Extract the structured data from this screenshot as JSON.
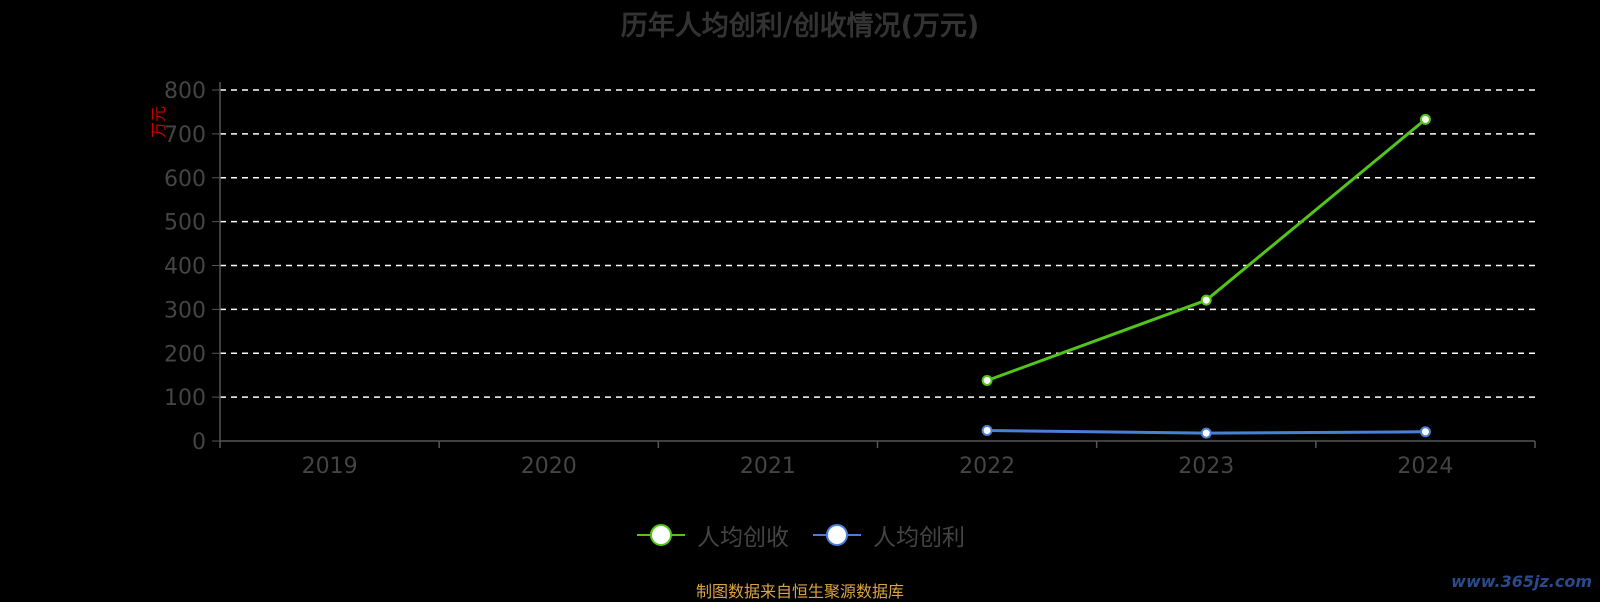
{
  "chart_data": {
    "type": "line",
    "title": "历年人均创利/创收情况(万元)",
    "ylabel": "万元",
    "xlabel": "",
    "categories": [
      "2019",
      "2020",
      "2021",
      "2022",
      "2023",
      "2024"
    ],
    "ylim": [
      0,
      800
    ],
    "yticks": [
      0,
      100,
      200,
      300,
      400,
      500,
      600,
      700,
      800
    ],
    "grid": true,
    "legend_position": "bottom",
    "series": [
      {
        "name": "人均创收",
        "color": "#52c41a",
        "values": [
          null,
          null,
          null,
          138,
          321,
          733
        ]
      },
      {
        "name": "人均创利",
        "color": "#4a7fd6",
        "values": [
          null,
          null,
          null,
          24,
          18,
          21
        ]
      }
    ]
  },
  "colors": {
    "background": "#000000",
    "axis_text": "#444444",
    "ylabel": "#cc0000",
    "grid": "#ffffff"
  },
  "source_note": "制图数据来自恒生聚源数据库",
  "watermark": "www.365jz.com"
}
